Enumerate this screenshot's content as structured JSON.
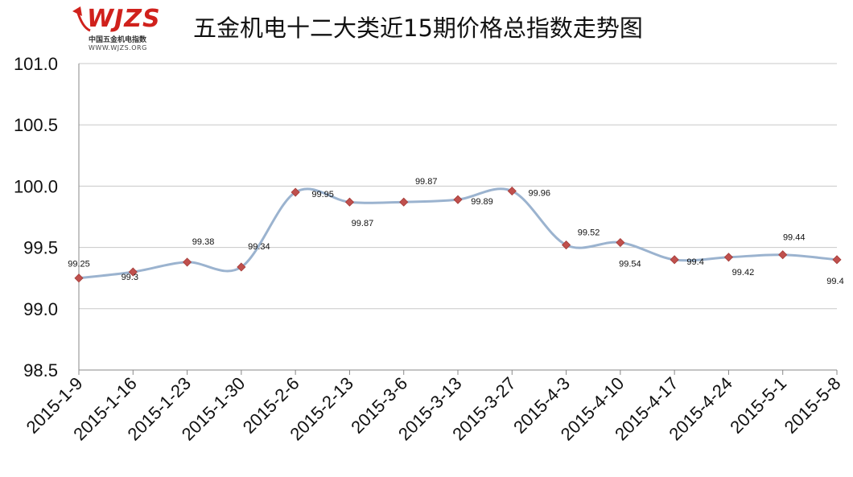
{
  "logo": {
    "name": "WJZS",
    "cn": "中国五金机电指数",
    "url": "WWW.WJZS.ORG"
  },
  "chart_data": {
    "type": "line",
    "title": "五金机电十二大类近15期价格总指数走势图",
    "xlabel": "",
    "ylabel": "",
    "categories": [
      "2015-1-9",
      "2015-1-16",
      "2015-1-23",
      "2015-1-30",
      "2015-2-6",
      "2015-2-13",
      "2015-3-6",
      "2015-3-13",
      "2015-3-27",
      "2015-4-3",
      "2015-4-10",
      "2015-4-17",
      "2015-4-24",
      "2015-5-1",
      "2015-5-8"
    ],
    "values": [
      99.25,
      99.3,
      99.38,
      99.34,
      99.95,
      99.87,
      99.87,
      99.89,
      99.96,
      99.52,
      99.54,
      99.4,
      99.42,
      99.44,
      99.4
    ],
    "value_labels": [
      "99.25",
      "99.3",
      "99.38",
      "99.34",
      "99.95",
      "99.87",
      "99.87",
      "99.89",
      "99.96",
      "99.52",
      "99.54",
      "99.4",
      "99.42",
      "99.44",
      "99.4"
    ],
    "ylim": [
      98.5,
      101.0
    ],
    "yticks": [
      "98.5",
      "99.0",
      "99.5",
      "100.0",
      "100.5",
      "101.0"
    ],
    "grid": true,
    "smooth": true,
    "line_color": "#9bb3cf",
    "marker_color": "#c0504d",
    "marker_shape": "diamond"
  }
}
